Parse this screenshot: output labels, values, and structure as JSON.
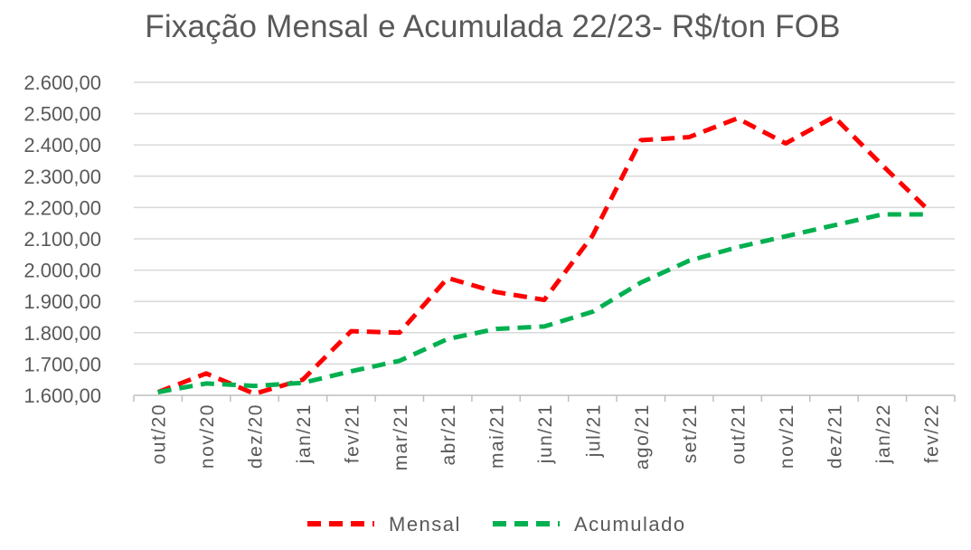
{
  "chart_data": {
    "type": "line",
    "title": "Fixação Mensal e Acumulada 22/23- R$/ton FOB",
    "categories": [
      "out/20",
      "nov/20",
      "dez/20",
      "jan/21",
      "fev/21",
      "mar/21",
      "abr/21",
      "mai/21",
      "jun/21",
      "jul/21",
      "ago/21",
      "set/21",
      "out/21",
      "nov/21",
      "dez/21",
      "jan/22",
      "fev/22"
    ],
    "series": [
      {
        "name": "Mensal",
        "color": "#FF0000",
        "values": [
          1610,
          1670,
          1605,
          1650,
          1805,
          1800,
          1975,
          1930,
          1905,
          2110,
          2415,
          2425,
          2485,
          2405,
          2490,
          2335,
          2185
        ]
      },
      {
        "name": "Acumulado",
        "color": "#00B050",
        "values": [
          1610,
          1638,
          1630,
          1640,
          1677,
          1710,
          1780,
          1812,
          1820,
          1867,
          1960,
          2030,
          2073,
          2108,
          2143,
          2178,
          2178
        ]
      }
    ],
    "ylim": [
      1600,
      2600
    ],
    "yticks": [
      1600,
      1700,
      1800,
      1900,
      2000,
      2100,
      2200,
      2300,
      2400,
      2500,
      2600
    ],
    "ytick_labels": [
      "1.600,00",
      "1.700,00",
      "1.800,00",
      "1.900,00",
      "2.000,00",
      "2.100,00",
      "2.200,00",
      "2.300,00",
      "2.400,00",
      "2.500,00",
      "2.600,00"
    ],
    "grid": true,
    "legend_position": "bottom",
    "gridline_color": "#D9D9D9",
    "axis_color": "#BFBFBF"
  }
}
